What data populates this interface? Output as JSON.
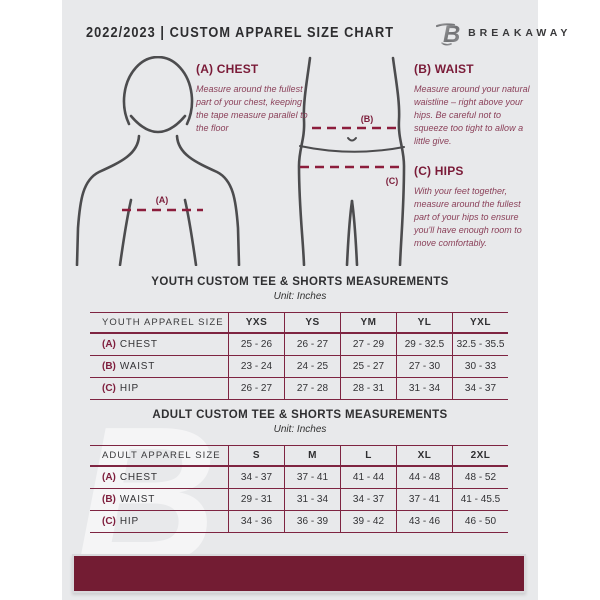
{
  "colors": {
    "accent_maroon": "#7a1b38",
    "table_line": "#7e2441",
    "bottom_bar": "#731c33",
    "page_bg": "#e8e9eb",
    "dark_text": "#2f2f31",
    "body_italic_text": "#8a3f58",
    "figure_outline": "#4c4c4e"
  },
  "header": {
    "title": "2022/2023  |  CUSTOM APPAREL SIZE CHART",
    "brand": "BREAKAWAY",
    "logo_letter": "B"
  },
  "measurements": [
    {
      "id": "A",
      "heading": "(A) CHEST",
      "body": "Measure around the fullest part of your chest, keeping the tape measure parallel to the floor"
    },
    {
      "id": "B",
      "heading": "(B) WAIST",
      "body": "Measure around your natural waistline – right above your hips. Be careful not to squeeze too tight to allow a little give."
    },
    {
      "id": "C",
      "heading": "(C) HIPS",
      "body": "With your feet together, measure around the fullest part of your hips to ensure you'll have enough room to move comfortably."
    }
  ],
  "diagram_labels": {
    "chest": "(A)",
    "waist": "(B)",
    "hips": "(C)"
  },
  "youth_table": {
    "title": "YOUTH CUSTOM TEE & SHORTS MEASUREMENTS",
    "unit": "Unit: Inches",
    "size_header": "YOUTH APPAREL SIZE",
    "columns": [
      "YXS",
      "YS",
      "YM",
      "YL",
      "YXL"
    ],
    "rows": [
      {
        "prefix": "(A)",
        "label": "CHEST",
        "values": [
          "25 - 26",
          "26 - 27",
          "27 - 29",
          "29 - 32.5",
          "32.5 - 35.5"
        ]
      },
      {
        "prefix": "(B)",
        "label": "WAIST",
        "values": [
          "23 - 24",
          "24 - 25",
          "25 - 27",
          "27 - 30",
          "30 - 33"
        ]
      },
      {
        "prefix": "(C)",
        "label": "HIP",
        "values": [
          "26 - 27",
          "27 - 28",
          "28 - 31",
          "31 - 34",
          "34 - 37"
        ]
      }
    ]
  },
  "adult_table": {
    "title": "ADULT CUSTOM TEE & SHORTS MEASUREMENTS",
    "unit": "Unit: Inches",
    "size_header": "ADULT APPAREL SIZE",
    "columns": [
      "S",
      "M",
      "L",
      "XL",
      "2XL"
    ],
    "rows": [
      {
        "prefix": "(A)",
        "label": "CHEST",
        "values": [
          "34 - 37",
          "37 - 41",
          "41 - 44",
          "44 - 48",
          "48 - 52"
        ]
      },
      {
        "prefix": "(B)",
        "label": "WAIST",
        "values": [
          "29 - 31",
          "31 - 34",
          "34 - 37",
          "37 - 41",
          "41 - 45.5"
        ]
      },
      {
        "prefix": "(C)",
        "label": "HIP",
        "values": [
          "34 - 36",
          "36 - 39",
          "39 - 42",
          "43 - 46",
          "46 - 50"
        ]
      }
    ]
  }
}
